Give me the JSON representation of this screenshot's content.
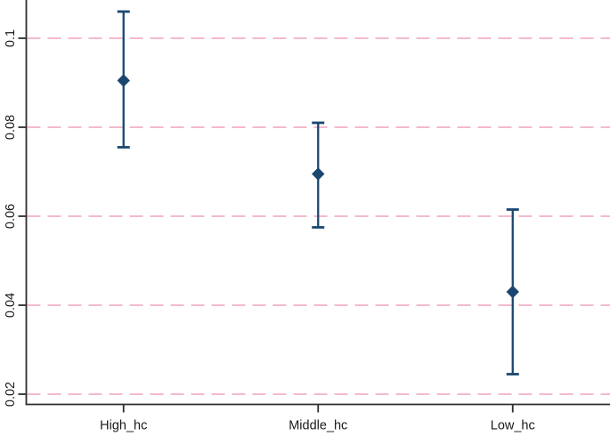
{
  "chart_data": {
    "type": "scatter",
    "subtype": "coefficient-plot-with-confidence-intervals",
    "title": "",
    "xlabel": "",
    "ylabel": "",
    "categories": [
      "High_hc",
      "Middle_hc",
      "Low_hc"
    ],
    "series": [
      {
        "name": "point_estimate",
        "marker": "diamond",
        "values": [
          0.0905,
          0.0695,
          0.043
        ]
      },
      {
        "name": "ci_upper",
        "values": [
          0.106,
          0.081,
          0.0615
        ]
      },
      {
        "name": "ci_lower",
        "values": [
          0.0755,
          0.0575,
          0.0245
        ]
      }
    ],
    "yticks": [
      0.02,
      0.04,
      0.06,
      0.08,
      0.1
    ],
    "ytick_labels": [
      "0.02",
      "0.04",
      "0.06",
      "0.08",
      "0.1"
    ],
    "ytick_label_rotation_deg": -90,
    "ylim": [
      0.0177,
      0.1086
    ],
    "grid": true,
    "gridline_style": "dashed",
    "legend": "none",
    "colors": {
      "marker": "#1a476f",
      "ci_line": "#1a476f",
      "gridline": "#f3bbca",
      "axis": "#2e2e2e",
      "text": "#1a1a1a",
      "background": "#ffffff"
    }
  }
}
